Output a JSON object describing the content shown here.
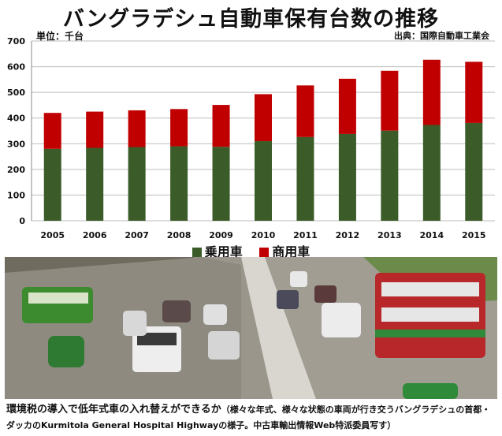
{
  "header": {
    "title": "バングラデシュ自動車保有台数の推移",
    "unit": "単位：千台",
    "source": "出典：国際自動車工業会"
  },
  "colors": {
    "passenger": "#3b5c28",
    "commercial": "#c00000"
  },
  "chart_data": {
    "type": "bar",
    "stacked": true,
    "title": "バングラデシュ自動車保有台数の推移",
    "xlabel": "",
    "ylabel": "",
    "categories": [
      "2005",
      "2006",
      "2007",
      "2008",
      "2009",
      "2010",
      "2011",
      "2012",
      "2013",
      "2014",
      "2015"
    ],
    "series": [
      {
        "name": "乗用車",
        "values": [
          280,
          284,
          287,
          290,
          288,
          310,
          326,
          338,
          351,
          373,
          381
        ]
      },
      {
        "name": "商用車",
        "values": [
          140,
          141,
          143,
          145,
          163,
          183,
          201,
          215,
          233,
          254,
          238
        ]
      }
    ],
    "ylim": [
      0,
      700
    ],
    "yticks": [
      0,
      100,
      200,
      300,
      400,
      500,
      600,
      700
    ],
    "grid": true,
    "legend_position": "bottom"
  },
  "caption": {
    "lead": "環境税の導入で低年式車の入れ替えができるか",
    "detail": "（様々な年式、様々な状態の車両が行き交うバングラデシュの首都・ダッカのKurmitola General Hospital Highwayの様子。中古車輸出情報Web特派委員写す）"
  }
}
